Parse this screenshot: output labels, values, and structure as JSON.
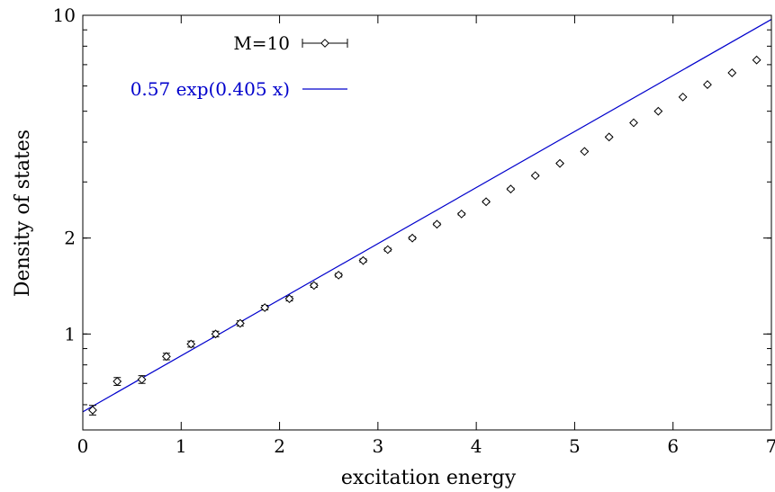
{
  "chart_data": {
    "type": "scatter",
    "title": "",
    "xlabel": "excitation energy",
    "ylabel": "Density of states",
    "xlim": [
      0,
      7
    ],
    "ylim": [
      0.5,
      10
    ],
    "yscale": "log",
    "grid": false,
    "legend_position": "top-center",
    "x_ticks": [
      "0",
      "1",
      "2",
      "3",
      "4",
      "5",
      "6",
      "7"
    ],
    "y_ticks": [
      "1",
      "2",
      "10"
    ],
    "series": [
      {
        "name": "M=10",
        "style": "points-with-errorbars",
        "marker": "diamond",
        "color": "#000000",
        "x": [
          0.1,
          0.35,
          0.6,
          0.85,
          1.1,
          1.35,
          1.6,
          1.85,
          2.1,
          2.35,
          2.6,
          2.85,
          3.1,
          3.35,
          3.6,
          3.85,
          4.1,
          4.35,
          4.6,
          4.85,
          5.1,
          5.35,
          5.6,
          5.85,
          6.1,
          6.35,
          6.6,
          6.85
        ],
        "y": [
          0.577,
          0.71,
          0.72,
          0.85,
          0.93,
          1.0,
          1.08,
          1.21,
          1.29,
          1.42,
          1.53,
          1.7,
          1.84,
          2.0,
          2.21,
          2.38,
          2.6,
          2.85,
          3.14,
          3.43,
          3.74,
          4.15,
          4.6,
          5.0,
          5.54,
          6.06,
          6.6,
          7.24
        ],
        "yerr": [
          0.02,
          0.02,
          0.02,
          0.02,
          0.02,
          0.02,
          0.02,
          0.02,
          0.02,
          0.02,
          0.02,
          0.02,
          0.02,
          0.02,
          0.02,
          0.02,
          0.02,
          0.02,
          0.02,
          0.02,
          0.02,
          0.02,
          0.02,
          0.02,
          0.02,
          0.02,
          0.02,
          0.02
        ]
      },
      {
        "name": "0.57 exp(0.405 x)",
        "style": "line",
        "color": "#0000cc",
        "function": {
          "a": 0.57,
          "b": 0.405
        }
      }
    ]
  }
}
